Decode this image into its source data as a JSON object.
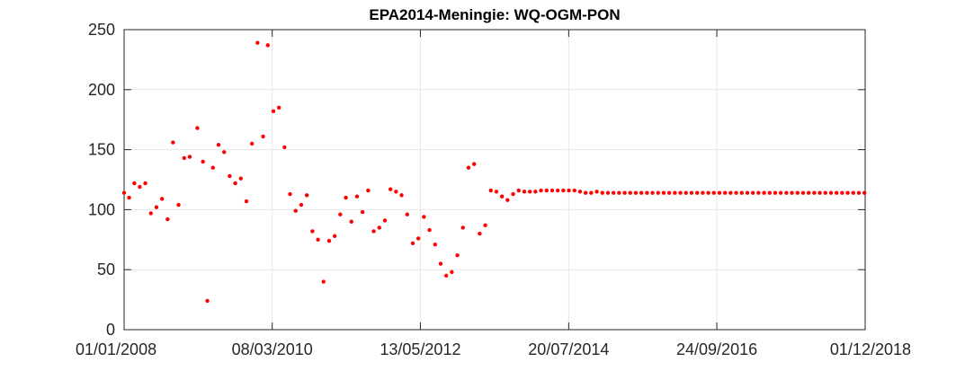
{
  "chart_data": {
    "type": "scatter",
    "title": "EPA2014-Meningie: WQ-OGM-PON",
    "xlabel": "",
    "ylabel": "",
    "x_type": "date",
    "xlim": [
      "2008-01-01",
      "2018-12-01"
    ],
    "ylim": [
      0,
      250
    ],
    "x_ticks": [
      "01/01/2008",
      "08/03/2010",
      "13/05/2012",
      "20/07/2014",
      "24/09/2016",
      "01/12/2018"
    ],
    "y_ticks": [
      0,
      50,
      100,
      150,
      200,
      250
    ],
    "grid": true,
    "marker_color": "#ff0000",
    "series": [
      {
        "points": [
          [
            "2008-01-01",
            114
          ],
          [
            "2008-01-28",
            110
          ],
          [
            "2008-02-25",
            122
          ],
          [
            "2008-03-25",
            119
          ],
          [
            "2008-04-24",
            122
          ],
          [
            "2008-05-24",
            97
          ],
          [
            "2008-06-23",
            102
          ],
          [
            "2008-07-23",
            109
          ],
          [
            "2008-08-22",
            92
          ],
          [
            "2008-09-20",
            156
          ],
          [
            "2008-10-20",
            104
          ],
          [
            "2008-11-19",
            143
          ],
          [
            "2008-12-19",
            144
          ],
          [
            "2009-01-29",
            168
          ],
          [
            "2009-02-28",
            140
          ],
          [
            "2009-03-24",
            24
          ],
          [
            "2009-04-23",
            135
          ],
          [
            "2009-05-23",
            154
          ],
          [
            "2009-06-22",
            148
          ],
          [
            "2009-07-22",
            128
          ],
          [
            "2009-08-21",
            122
          ],
          [
            "2009-09-20",
            126
          ],
          [
            "2009-10-20",
            107
          ],
          [
            "2009-11-19",
            155
          ],
          [
            "2009-12-19",
            239
          ],
          [
            "2010-01-18",
            161
          ],
          [
            "2010-02-12",
            237
          ],
          [
            "2010-03-14",
            182
          ],
          [
            "2010-04-13",
            185
          ],
          [
            "2010-05-13",
            152
          ],
          [
            "2010-06-12",
            113
          ],
          [
            "2010-07-12",
            99
          ],
          [
            "2010-08-11",
            104
          ],
          [
            "2010-09-10",
            112
          ],
          [
            "2010-10-10",
            82
          ],
          [
            "2010-11-09",
            75
          ],
          [
            "2010-12-09",
            40
          ],
          [
            "2011-01-08",
            74
          ],
          [
            "2011-02-07",
            78
          ],
          [
            "2011-03-09",
            96
          ],
          [
            "2011-04-08",
            110
          ],
          [
            "2011-05-08",
            90
          ],
          [
            "2011-06-07",
            111
          ],
          [
            "2011-07-07",
            98
          ],
          [
            "2011-08-06",
            116
          ],
          [
            "2011-09-05",
            82
          ],
          [
            "2011-10-05",
            85
          ],
          [
            "2011-11-04",
            91
          ],
          [
            "2011-12-04",
            117
          ],
          [
            "2012-01-03",
            115
          ],
          [
            "2012-02-02",
            112
          ],
          [
            "2012-03-03",
            96
          ],
          [
            "2012-04-02",
            72
          ],
          [
            "2012-05-02",
            76
          ],
          [
            "2012-06-01",
            94
          ],
          [
            "2012-07-01",
            83
          ],
          [
            "2012-07-31",
            71
          ],
          [
            "2012-08-30",
            55
          ],
          [
            "2012-09-29",
            45
          ],
          [
            "2012-10-29",
            48
          ],
          [
            "2012-11-28",
            62
          ],
          [
            "2012-12-28",
            85
          ],
          [
            "2013-01-27",
            135
          ],
          [
            "2013-02-26",
            138
          ],
          [
            "2013-03-28",
            80
          ],
          [
            "2013-04-27",
            87
          ],
          [
            "2013-05-27",
            116
          ],
          [
            "2013-06-26",
            115
          ],
          [
            "2013-07-26",
            111
          ],
          [
            "2013-08-25",
            108
          ],
          [
            "2013-09-24",
            113
          ],
          [
            "2013-10-24",
            116
          ],
          [
            "2013-11-23",
            115
          ],
          [
            "2013-12-23",
            115
          ],
          [
            "2014-01-22",
            115
          ],
          [
            "2014-02-21",
            116
          ],
          [
            "2014-03-23",
            116
          ],
          [
            "2014-04-22",
            116
          ],
          [
            "2014-05-22",
            116
          ],
          [
            "2014-06-21",
            116
          ],
          [
            "2014-07-21",
            116
          ],
          [
            "2014-08-20",
            116
          ],
          [
            "2014-09-19",
            115
          ],
          [
            "2014-10-19",
            114
          ],
          [
            "2014-11-18",
            114
          ],
          [
            "2014-12-18",
            115
          ],
          [
            "2015-01-17",
            114
          ],
          [
            "2015-02-16",
            114
          ],
          [
            "2015-03-18",
            114
          ],
          [
            "2015-04-17",
            114
          ],
          [
            "2015-05-17",
            114
          ],
          [
            "2015-06-16",
            114
          ],
          [
            "2015-07-16",
            114
          ],
          [
            "2015-08-15",
            114
          ],
          [
            "2015-09-14",
            114
          ],
          [
            "2015-10-14",
            114
          ],
          [
            "2015-11-13",
            114
          ],
          [
            "2015-12-13",
            114
          ],
          [
            "2016-01-12",
            114
          ],
          [
            "2016-02-11",
            114
          ],
          [
            "2016-03-12",
            114
          ],
          [
            "2016-04-11",
            114
          ],
          [
            "2016-05-11",
            114
          ],
          [
            "2016-06-10",
            114
          ],
          [
            "2016-07-10",
            114
          ],
          [
            "2016-08-09",
            114
          ],
          [
            "2016-09-08",
            114
          ],
          [
            "2016-10-08",
            114
          ],
          [
            "2016-11-07",
            114
          ],
          [
            "2016-12-07",
            114
          ],
          [
            "2017-01-06",
            114
          ],
          [
            "2017-02-05",
            114
          ],
          [
            "2017-03-07",
            114
          ],
          [
            "2017-04-06",
            114
          ],
          [
            "2017-05-06",
            114
          ],
          [
            "2017-06-05",
            114
          ],
          [
            "2017-07-05",
            114
          ],
          [
            "2017-08-04",
            114
          ],
          [
            "2017-09-03",
            114
          ],
          [
            "2017-10-03",
            114
          ],
          [
            "2017-11-02",
            114
          ],
          [
            "2017-12-02",
            114
          ],
          [
            "2018-01-01",
            114
          ],
          [
            "2018-01-31",
            114
          ],
          [
            "2018-03-02",
            114
          ],
          [
            "2018-04-01",
            114
          ],
          [
            "2018-05-01",
            114
          ],
          [
            "2018-05-31",
            114
          ],
          [
            "2018-06-30",
            114
          ],
          [
            "2018-07-30",
            114
          ],
          [
            "2018-08-29",
            114
          ],
          [
            "2018-09-28",
            114
          ],
          [
            "2018-10-28",
            114
          ],
          [
            "2018-11-27",
            114
          ]
        ]
      }
    ]
  }
}
